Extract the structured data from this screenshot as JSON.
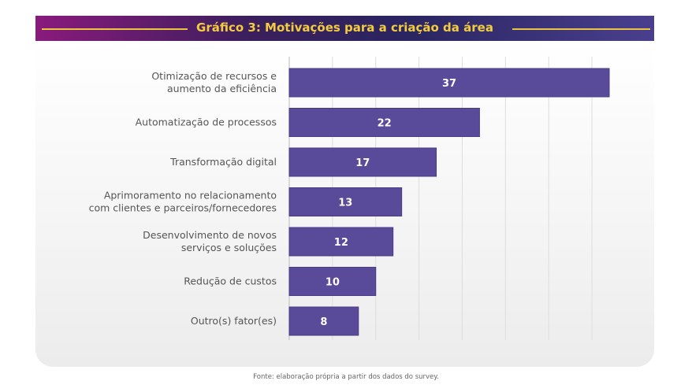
{
  "header": {
    "title": "Gráfico 3: Motivações para a criação da área"
  },
  "source": "Fonte: elaboração própria a partir dos dados do survey.",
  "colors": {
    "bar": "#5a4a9a",
    "title": "#f2cc3e",
    "grid": "#dddddd"
  },
  "chart_data": {
    "type": "bar",
    "orientation": "horizontal",
    "title": "Gráfico 3: Motivações para a criação da área",
    "categories": [
      [
        "Otimização de recursos e",
        "aumento da eficiência"
      ],
      [
        "Automatização de processos"
      ],
      [
        "Transformação digital"
      ],
      [
        "Aprimoramento no relacionamento",
        "com clientes e parceiros/fornecedores"
      ],
      [
        "Desenvolvimento de novos",
        "serviços e soluções"
      ],
      [
        "Redução de custos"
      ],
      [
        "Outro(s) fator(es)"
      ]
    ],
    "values": [
      37,
      22,
      17,
      13,
      12,
      10,
      8
    ],
    "xlim": [
      0,
      40
    ],
    "grid": true,
    "grid_step": 5,
    "data_labels": true
  }
}
